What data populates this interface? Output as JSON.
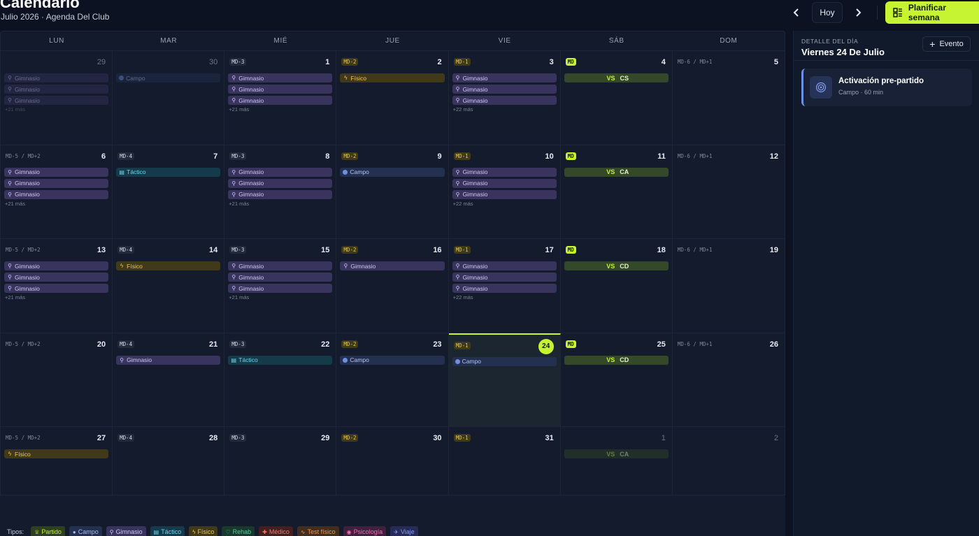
{
  "header": {
    "title": "Calendario",
    "subtitle": "Julio 2026 · Agenda Del Club",
    "prev_icon": "chevron-left-icon",
    "next_icon": "chevron-right-icon",
    "today_label": "Hoy",
    "plan_label": "Planificar semana",
    "accent": "#c6f432"
  },
  "weekdays": [
    "LUN",
    "MAR",
    "MIÉ",
    "JUE",
    "VIE",
    "SÁB",
    "DOM"
  ],
  "cells": [
    {
      "day": "29",
      "muted": true,
      "events": [
        {
          "type": "gym",
          "label": "Gimnasio"
        },
        {
          "type": "gym",
          "label": "Gimnasio"
        },
        {
          "type": "gym",
          "label": "Gimnasio"
        }
      ],
      "more": "+21 más",
      "faded": true
    },
    {
      "day": "30",
      "muted": true,
      "events": [
        {
          "type": "campo",
          "label": "Campo"
        }
      ],
      "faded": true
    },
    {
      "day": "1",
      "tag": "MD-3",
      "tagStyle": "plain",
      "events": [
        {
          "type": "gym",
          "label": "Gimnasio"
        },
        {
          "type": "gym",
          "label": "Gimnasio"
        },
        {
          "type": "gym",
          "label": "Gimnasio"
        }
      ],
      "more": "+21 más"
    },
    {
      "day": "2",
      "tag": "MD-2",
      "tagStyle": "yellow",
      "events": [
        {
          "type": "fisico",
          "label": "Físico"
        }
      ]
    },
    {
      "day": "3",
      "tag": "MD-1",
      "tagStyle": "yellow",
      "events": [
        {
          "type": "gym",
          "label": "Gimnasio"
        },
        {
          "type": "gym",
          "label": "Gimnasio"
        },
        {
          "type": "gym",
          "label": "Gimnasio"
        }
      ],
      "more": "+22 más"
    },
    {
      "day": "4",
      "tag": "MD",
      "tagStyle": "lime",
      "events": [
        {
          "type": "match",
          "vs": "VS",
          "label": "CS"
        }
      ]
    },
    {
      "day": "5",
      "tag": "MD-6 / MD+1",
      "tagStyle": "range",
      "events": []
    },
    {
      "day": "6",
      "tag": "MD-5 / MD+2",
      "tagStyle": "range",
      "events": [
        {
          "type": "gym",
          "label": "Gimnasio"
        },
        {
          "type": "gym",
          "label": "Gimnasio"
        },
        {
          "type": "gym",
          "label": "Gimnasio"
        }
      ],
      "more": "+21 más"
    },
    {
      "day": "7",
      "tag": "MD-4",
      "tagStyle": "plain",
      "events": [
        {
          "type": "tactico",
          "label": "Táctico"
        }
      ]
    },
    {
      "day": "8",
      "tag": "MD-3",
      "tagStyle": "plain",
      "events": [
        {
          "type": "gym",
          "label": "Gimnasio"
        },
        {
          "type": "gym",
          "label": "Gimnasio"
        },
        {
          "type": "gym",
          "label": "Gimnasio"
        }
      ],
      "more": "+21 más"
    },
    {
      "day": "9",
      "tag": "MD-2",
      "tagStyle": "yellow",
      "events": [
        {
          "type": "campo",
          "label": "Campo"
        }
      ]
    },
    {
      "day": "10",
      "tag": "MD-1",
      "tagStyle": "yellow",
      "events": [
        {
          "type": "gym",
          "label": "Gimnasio"
        },
        {
          "type": "gym",
          "label": "Gimnasio"
        },
        {
          "type": "gym",
          "label": "Gimnasio"
        }
      ],
      "more": "+22 más"
    },
    {
      "day": "11",
      "tag": "MD",
      "tagStyle": "lime",
      "events": [
        {
          "type": "match",
          "vs": "VS",
          "label": "CA"
        }
      ]
    },
    {
      "day": "12",
      "tag": "MD-6 / MD+1",
      "tagStyle": "range",
      "events": []
    },
    {
      "day": "13",
      "tag": "MD-5 / MD+2",
      "tagStyle": "range",
      "events": [
        {
          "type": "gym",
          "label": "Gimnasio"
        },
        {
          "type": "gym",
          "label": "Gimnasio"
        },
        {
          "type": "gym",
          "label": "Gimnasio"
        }
      ],
      "more": "+21 más"
    },
    {
      "day": "14",
      "tag": "MD-4",
      "tagStyle": "plain",
      "events": [
        {
          "type": "fisico",
          "label": "Físico"
        }
      ]
    },
    {
      "day": "15",
      "tag": "MD-3",
      "tagStyle": "plain",
      "events": [
        {
          "type": "gym",
          "label": "Gimnasio"
        },
        {
          "type": "gym",
          "label": "Gimnasio"
        },
        {
          "type": "gym",
          "label": "Gimnasio"
        }
      ],
      "more": "+21 más"
    },
    {
      "day": "16",
      "tag": "MD-2",
      "tagStyle": "yellow",
      "events": [
        {
          "type": "gym",
          "label": "Gimnasio"
        }
      ]
    },
    {
      "day": "17",
      "tag": "MD-1",
      "tagStyle": "yellow",
      "events": [
        {
          "type": "gym",
          "label": "Gimnasio"
        },
        {
          "type": "gym",
          "label": "Gimnasio"
        },
        {
          "type": "gym",
          "label": "Gimnasio"
        }
      ],
      "more": "+22 más"
    },
    {
      "day": "18",
      "tag": "MD",
      "tagStyle": "lime",
      "events": [
        {
          "type": "match",
          "vs": "VS",
          "label": "CD"
        }
      ]
    },
    {
      "day": "19",
      "tag": "MD-6 / MD+1",
      "tagStyle": "range",
      "events": []
    },
    {
      "day": "20",
      "tag": "MD-5 / MD+2",
      "tagStyle": "range",
      "events": []
    },
    {
      "day": "21",
      "tag": "MD-4",
      "tagStyle": "plain",
      "events": [
        {
          "type": "gym",
          "label": "Gimnasio"
        }
      ]
    },
    {
      "day": "22",
      "tag": "MD-3",
      "tagStyle": "plain",
      "events": [
        {
          "type": "tactico",
          "label": "Táctico"
        }
      ]
    },
    {
      "day": "23",
      "tag": "MD-2",
      "tagStyle": "yellow",
      "events": [
        {
          "type": "campo",
          "label": "Campo"
        }
      ]
    },
    {
      "day": "24",
      "tag": "MD-1",
      "tagStyle": "yellow",
      "today": true,
      "events": [
        {
          "type": "campo",
          "label": "Campo"
        }
      ]
    },
    {
      "day": "25",
      "tag": "MD",
      "tagStyle": "lime",
      "events": [
        {
          "type": "match",
          "vs": "VS",
          "label": "CD"
        }
      ]
    },
    {
      "day": "26",
      "tag": "MD-6 / MD+1",
      "tagStyle": "range",
      "events": []
    },
    {
      "day": "27",
      "tag": "MD-5 / MD+2",
      "tagStyle": "range",
      "events": [
        {
          "type": "fisico",
          "label": "Físico"
        }
      ]
    },
    {
      "day": "28",
      "tag": "MD-4",
      "tagStyle": "plain",
      "events": []
    },
    {
      "day": "29",
      "tag": "MD-3",
      "tagStyle": "plain",
      "events": []
    },
    {
      "day": "30",
      "tag": "MD-2",
      "tagStyle": "yellow",
      "events": []
    },
    {
      "day": "31",
      "tag": "MD-1",
      "tagStyle": "yellow",
      "events": []
    },
    {
      "day": "1",
      "muted": true,
      "events": [
        {
          "type": "match",
          "vs": "VS",
          "label": "CA"
        }
      ],
      "faded": true
    },
    {
      "day": "2",
      "muted": true,
      "events": []
    }
  ],
  "legend": {
    "label": "Tipos:",
    "items": [
      {
        "cls": "partido",
        "icon": "trophy-icon",
        "glyph": "♕",
        "label": "Partido"
      },
      {
        "cls": "campo",
        "icon": "circle-icon",
        "glyph": "●",
        "label": "Campo"
      },
      {
        "cls": "gimnasio",
        "icon": "dumbbell-icon",
        "glyph": "⚲",
        "label": "Gimnasio"
      },
      {
        "cls": "tactico",
        "icon": "clipboard-icon",
        "glyph": "▤",
        "label": "Táctico"
      },
      {
        "cls": "fisico",
        "icon": "lightning-icon",
        "glyph": "ϟ",
        "label": "Físico"
      },
      {
        "cls": "rehab",
        "icon": "heart-icon",
        "glyph": "♡",
        "label": "Rehab"
      },
      {
        "cls": "medico",
        "icon": "medical-icon",
        "glyph": "✚",
        "label": "Médico"
      },
      {
        "cls": "test",
        "icon": "pulse-icon",
        "glyph": "∿",
        "label": "Test físico"
      },
      {
        "cls": "psico",
        "icon": "brain-icon",
        "glyph": "◉",
        "label": "Psicología"
      },
      {
        "cls": "viaje",
        "icon": "plane-icon",
        "glyph": "✈",
        "label": "Viaje"
      }
    ]
  },
  "side": {
    "caption": "DETALLE DEL DÍA",
    "title": "Viernes 24 De Julio",
    "add_label": "Evento",
    "event": {
      "title": "Activación pre-partido",
      "meta": "Campo · 60 min",
      "icon": "target-icon"
    }
  }
}
